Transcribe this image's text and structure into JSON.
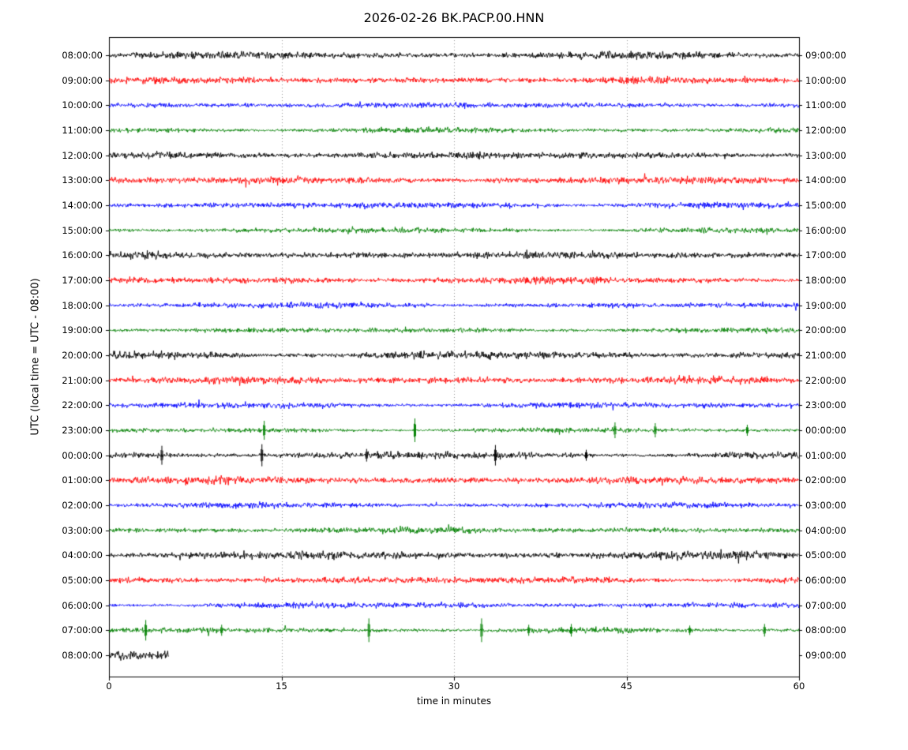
{
  "chart_data": {
    "type": "line",
    "subtype": "helicorder-dayplot",
    "title": "2026-02-26 BK.PACP.00.HNN",
    "xlabel": "time in minutes",
    "ylabel": "UTC (local time = UTC - 08:00)",
    "xlim": [
      0,
      60
    ],
    "x_ticks": [
      0,
      15,
      30,
      45,
      60
    ],
    "grid": "vertical dotted lines at 15, 30, 45 minutes",
    "legend": "none",
    "colors_cycle": [
      "#000000",
      "#ff0000",
      "#0000ff",
      "#008000"
    ],
    "content_description": "Continuous seismic background noise, one trace row per hour; occasional short transient spikes; final row contains only ~5 minutes of data",
    "rows": [
      {
        "left_label": "08:00:00",
        "right_label": "09:00:00",
        "color": "#000000",
        "duration_minutes": 60,
        "amplitude": 7,
        "spikes": []
      },
      {
        "left_label": "09:00:00",
        "right_label": "10:00:00",
        "color": "#ff0000",
        "duration_minutes": 60,
        "amplitude": 6.5,
        "spikes": []
      },
      {
        "left_label": "10:00:00",
        "right_label": "11:00:00",
        "color": "#0000ff",
        "duration_minutes": 60,
        "amplitude": 5.5,
        "spikes": []
      },
      {
        "left_label": "11:00:00",
        "right_label": "12:00:00",
        "color": "#008000",
        "duration_minutes": 60,
        "amplitude": 5,
        "spikes": []
      },
      {
        "left_label": "12:00:00",
        "right_label": "13:00:00",
        "color": "#000000",
        "duration_minutes": 60,
        "amplitude": 7,
        "spikes": []
      },
      {
        "left_label": "13:00:00",
        "right_label": "14:00:00",
        "color": "#ff0000",
        "duration_minutes": 60,
        "amplitude": 7,
        "spikes": []
      },
      {
        "left_label": "14:00:00",
        "right_label": "15:00:00",
        "color": "#0000ff",
        "duration_minutes": 60,
        "amplitude": 6,
        "spikes": []
      },
      {
        "left_label": "15:00:00",
        "right_label": "16:00:00",
        "color": "#008000",
        "duration_minutes": 60,
        "amplitude": 5,
        "spikes": []
      },
      {
        "left_label": "16:00:00",
        "right_label": "17:00:00",
        "color": "#000000",
        "duration_minutes": 60,
        "amplitude": 7,
        "spikes": []
      },
      {
        "left_label": "17:00:00",
        "right_label": "18:00:00",
        "color": "#ff0000",
        "duration_minutes": 60,
        "amplitude": 6.5,
        "spikes": []
      },
      {
        "left_label": "18:00:00",
        "right_label": "19:00:00",
        "color": "#0000ff",
        "duration_minutes": 60,
        "amplitude": 5.5,
        "spikes": []
      },
      {
        "left_label": "19:00:00",
        "right_label": "20:00:00",
        "color": "#008000",
        "duration_minutes": 60,
        "amplitude": 5,
        "spikes": []
      },
      {
        "left_label": "20:00:00",
        "right_label": "21:00:00",
        "color": "#000000",
        "duration_minutes": 60,
        "amplitude": 7.5,
        "spikes": []
      },
      {
        "left_label": "21:00:00",
        "right_label": "22:00:00",
        "color": "#ff0000",
        "duration_minutes": 60,
        "amplitude": 7,
        "spikes": []
      },
      {
        "left_label": "22:00:00",
        "right_label": "23:00:00",
        "color": "#0000ff",
        "duration_minutes": 60,
        "amplitude": 5.5,
        "spikes": []
      },
      {
        "left_label": "23:00:00",
        "right_label": "00:00:00",
        "color": "#008000",
        "duration_minutes": 60,
        "amplitude": 4.5,
        "spikes": [
          {
            "m": 13.5,
            "h": 12
          },
          {
            "m": 26.6,
            "h": 15
          },
          {
            "m": 44.0,
            "h": 10
          },
          {
            "m": 47.5,
            "h": 9
          },
          {
            "m": 55.5,
            "h": 7
          }
        ]
      },
      {
        "left_label": "00:00:00",
        "right_label": "01:00:00",
        "color": "#000000",
        "duration_minutes": 60,
        "amplitude": 6.5,
        "spikes": [
          {
            "m": 4.6,
            "h": 12
          },
          {
            "m": 13.3,
            "h": 14
          },
          {
            "m": 22.4,
            "h": 8
          },
          {
            "m": 33.6,
            "h": 13
          },
          {
            "m": 41.5,
            "h": 7
          }
        ]
      },
      {
        "left_label": "01:00:00",
        "right_label": "02:00:00",
        "color": "#ff0000",
        "duration_minutes": 60,
        "amplitude": 7,
        "spikes": []
      },
      {
        "left_label": "02:00:00",
        "right_label": "03:00:00",
        "color": "#0000ff",
        "duration_minutes": 60,
        "amplitude": 5.5,
        "spikes": []
      },
      {
        "left_label": "03:00:00",
        "right_label": "04:00:00",
        "color": "#008000",
        "duration_minutes": 60,
        "amplitude": 6,
        "spikes": []
      },
      {
        "left_label": "04:00:00",
        "right_label": "05:00:00",
        "color": "#000000",
        "duration_minutes": 60,
        "amplitude": 8,
        "spikes": []
      },
      {
        "left_label": "05:00:00",
        "right_label": "06:00:00",
        "color": "#ff0000",
        "duration_minutes": 60,
        "amplitude": 6.5,
        "spikes": []
      },
      {
        "left_label": "06:00:00",
        "right_label": "07:00:00",
        "color": "#0000ff",
        "duration_minutes": 60,
        "amplitude": 5.5,
        "spikes": []
      },
      {
        "left_label": "07:00:00",
        "right_label": "08:00:00",
        "color": "#008000",
        "duration_minutes": 60,
        "amplitude": 5,
        "spikes": [
          {
            "m": 3.2,
            "h": 13
          },
          {
            "m": 9.8,
            "h": 7
          },
          {
            "m": 22.6,
            "h": 15
          },
          {
            "m": 32.4,
            "h": 15
          },
          {
            "m": 36.5,
            "h": 7
          },
          {
            "m": 40.2,
            "h": 8
          },
          {
            "m": 50.5,
            "h": 6
          },
          {
            "m": 57.0,
            "h": 8
          }
        ]
      },
      {
        "left_label": "08:00:00",
        "right_label": "09:00:00",
        "color": "#000000",
        "duration_minutes": 5.2,
        "amplitude": 9.5,
        "spikes": []
      }
    ]
  }
}
